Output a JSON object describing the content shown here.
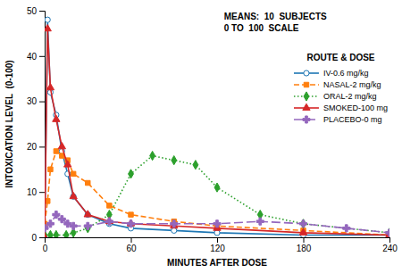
{
  "chart_data": {
    "type": "line",
    "annotations": [
      "MEANS:  10  SUBJECTS",
      "0 TO  100  SCALE"
    ],
    "legend_title": "ROUTE & DOSE",
    "x_label": "MINUTES AFTER DOSE",
    "y_label": "INTOXICATION LEVEL  (0-100)",
    "xlim": [
      0,
      240
    ],
    "ylim": [
      0,
      50
    ],
    "xticks": [
      0,
      60,
      120,
      180,
      240
    ],
    "yticks": [
      0,
      10,
      20,
      30,
      40,
      50
    ],
    "grid": false,
    "legend": "upper-right",
    "series": [
      {
        "name": "IV-0.6 mg/kg",
        "marker": "circle-open",
        "line_style": "solid",
        "x": [
          0,
          2,
          4,
          8,
          12,
          16,
          20,
          30,
          45,
          60,
          90,
          120,
          180,
          240
        ],
        "values": [
          0,
          48,
          32,
          27,
          19,
          14,
          9,
          5,
          3,
          2,
          1.5,
          1,
          0.5,
          0.5
        ]
      },
      {
        "name": "NASAL-2 mg/kg",
        "marker": "square",
        "line_style": "dashed",
        "x": [
          0,
          2,
          4,
          8,
          12,
          16,
          20,
          30,
          45,
          60,
          90,
          120,
          180,
          240
        ],
        "values": [
          3,
          8,
          15,
          19,
          18,
          17,
          14,
          12,
          7,
          5,
          3.5,
          2.5,
          1.5,
          0.5
        ]
      },
      {
        "name": "ORAL-2 mg/kg",
        "marker": "diamond",
        "line_style": "dotted",
        "x": [
          0,
          4,
          8,
          15,
          20,
          30,
          45,
          60,
          75,
          90,
          105,
          120,
          150,
          180,
          240
        ],
        "values": [
          0.5,
          0.5,
          0.5,
          0.5,
          1,
          2,
          5,
          14,
          18,
          17,
          16,
          11,
          5,
          3,
          1
        ]
      },
      {
        "name": "SMOKED-100 mg",
        "marker": "triangle",
        "line_style": "solid",
        "x": [
          0,
          2,
          4,
          8,
          12,
          16,
          20,
          30,
          45,
          60,
          90,
          120,
          180,
          240
        ],
        "values": [
          0,
          46,
          33,
          26,
          20,
          16,
          9,
          5,
          3.5,
          3,
          2.5,
          2,
          1,
          0.5
        ]
      },
      {
        "name": "PLACEBO-0 mg",
        "marker": "plus",
        "line_style": "long-dashed",
        "x": [
          0,
          4,
          8,
          12,
          16,
          20,
          30,
          45,
          60,
          90,
          120,
          150,
          180,
          210,
          240
        ],
        "values": [
          2,
          3,
          5,
          4,
          3,
          2.5,
          2.5,
          3.5,
          3,
          3,
          3,
          3.5,
          3,
          2,
          1
        ]
      }
    ]
  }
}
